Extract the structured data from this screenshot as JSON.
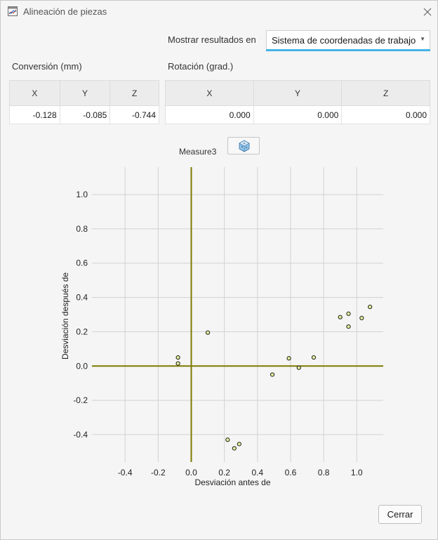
{
  "window": {
    "title": "Alineación de piezas",
    "icon": "chart-window-icon",
    "close_icon": "close-icon"
  },
  "display": {
    "label": "Mostrar resultados en",
    "selected": "Sistema de coordenadas de trabajo",
    "accent_color": "#45b3e6"
  },
  "translation": {
    "label": "Conversión (mm)",
    "headers": [
      "X",
      "Y",
      "Z"
    ],
    "values": [
      "-0.128",
      "-0.085",
      "-0.744"
    ]
  },
  "rotation": {
    "label": "Rotación (grad.)",
    "headers": [
      "X",
      "Y",
      "Z"
    ],
    "values": [
      "0.000",
      "0.000",
      "0.000"
    ]
  },
  "measure": {
    "label": "Measure3",
    "button_icon": "cube-view-icon"
  },
  "chart_data": {
    "type": "scatter",
    "xlabel": "Desviación antes de",
    "ylabel": "Desviación después de",
    "xlim": [
      -0.6,
      1.16
    ],
    "ylim": [
      -0.56,
      1.16
    ],
    "xticks": [
      -0.4,
      -0.2,
      0.0,
      0.2,
      0.4,
      0.6,
      0.8,
      1.0
    ],
    "xtick_labels": [
      "-0.4",
      "-0.2",
      "0.0",
      "0.2",
      "0.4",
      "0.6",
      "0.8",
      "1.0"
    ],
    "yticks": [
      -0.4,
      -0.2,
      0.0,
      0.2,
      0.4,
      0.6,
      0.8,
      1.0
    ],
    "ytick_labels": [
      "-0.4",
      "-0.2",
      "0.0",
      "0.2",
      "0.4",
      "0.6",
      "0.8",
      "1.0"
    ],
    "grid": true,
    "axis_color": "#7d7a00",
    "point_color": "#e6ee9c",
    "points": [
      {
        "x": -0.08,
        "y": 0.05
      },
      {
        "x": -0.08,
        "y": 0.015
      },
      {
        "x": 0.1,
        "y": 0.195
      },
      {
        "x": 0.49,
        "y": -0.05
      },
      {
        "x": 0.59,
        "y": 0.045
      },
      {
        "x": 0.65,
        "y": -0.01
      },
      {
        "x": 0.74,
        "y": 0.05
      },
      {
        "x": 0.9,
        "y": 0.285
      },
      {
        "x": 0.95,
        "y": 0.305
      },
      {
        "x": 0.95,
        "y": 0.23
      },
      {
        "x": 1.03,
        "y": 0.28
      },
      {
        "x": 1.08,
        "y": 0.345
      },
      {
        "x": 0.22,
        "y": -0.43
      },
      {
        "x": 0.26,
        "y": -0.48
      },
      {
        "x": 0.29,
        "y": -0.455
      }
    ]
  },
  "footer": {
    "close_label": "Cerrar"
  }
}
